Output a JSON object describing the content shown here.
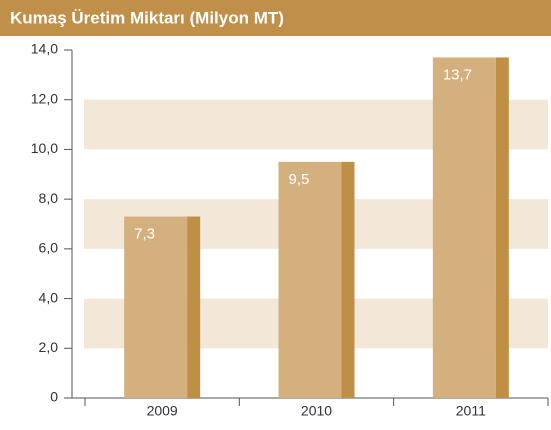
{
  "chart_data": {
    "type": "bar",
    "title": "Kumaş Üretim Miktarı (Milyon MT)",
    "categories": [
      "2009",
      "2010",
      "2011"
    ],
    "values": [
      7.3,
      9.5,
      13.7
    ],
    "value_labels": [
      "7,3",
      "9,5",
      "13,7"
    ],
    "color": "#d4b07e",
    "ylim": [
      0,
      14
    ],
    "yticks": [
      0,
      {
        "value": 2,
        "label": "2,0"
      },
      {
        "value": 4,
        "label": "4,0"
      },
      {
        "value": 6,
        "label": "6,0"
      },
      {
        "value": 8,
        "label": "8,0"
      },
      {
        "value": 10,
        "label": "10,0"
      },
      {
        "value": 12,
        "label": "12,0"
      },
      {
        "value": 14,
        "label": "14,0"
      }
    ]
  }
}
